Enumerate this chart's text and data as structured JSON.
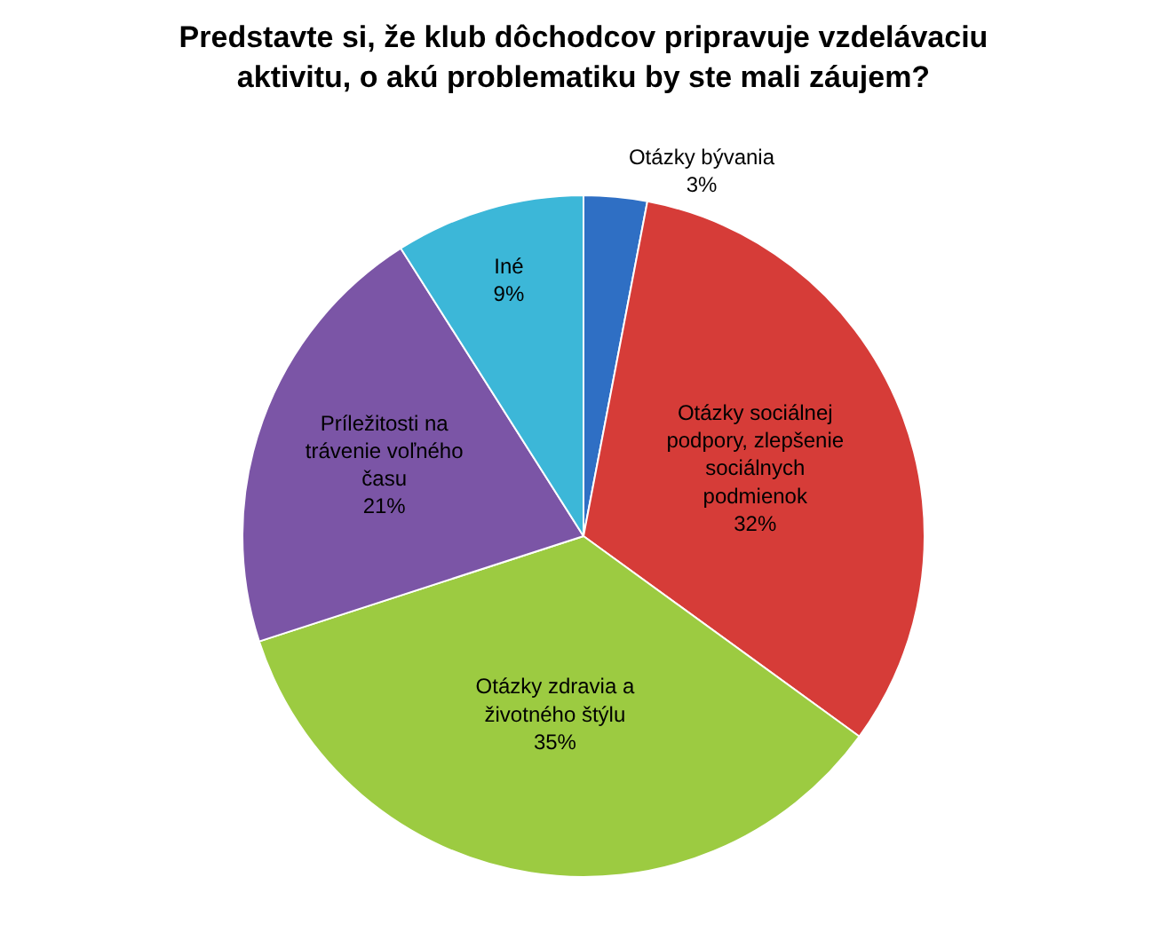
{
  "chart_data": {
    "type": "pie",
    "title": "Predstavte si, že klub dôchodcov pripravuje vzdelávaciu\naktivitu, o akú problematiku by ste mali záujem?",
    "categories": [
      "Otázky bývania",
      "Otázky sociálnej\npodpory, zlepšenie\nsociálnych\npodmienok",
      "Otázky zdravia a\nživotného štýlu",
      "Príležitosti na\ntrávenie voľného\nčasu",
      "Iné"
    ],
    "values": [
      3,
      32,
      35,
      21,
      9
    ],
    "colors": [
      "#2f6fc4",
      "#d63c38",
      "#9ccb41",
      "#7b55a6",
      "#3cb7d8"
    ],
    "value_labels": [
      "3%",
      "32%",
      "35%",
      "21%",
      "9%"
    ],
    "legend": false
  }
}
